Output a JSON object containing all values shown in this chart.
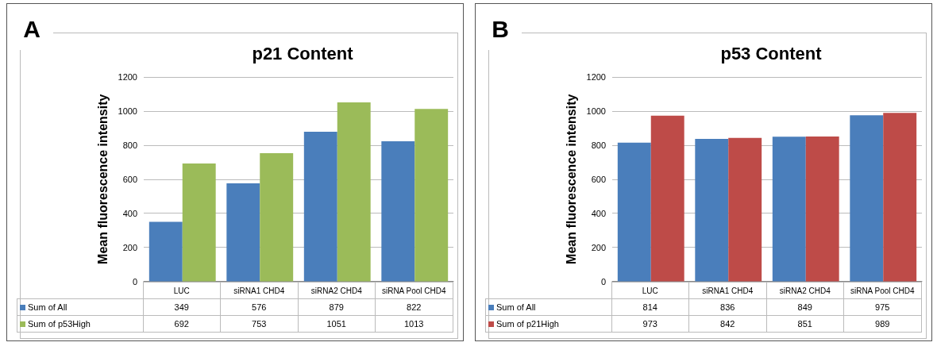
{
  "chart_data": [
    {
      "type": "bar",
      "title": "p21 Content",
      "ylabel": "Mean fluorescence intensity",
      "annotations": [
        "A"
      ],
      "categories": [
        "LUC",
        "siRNA1  CHD4",
        "siRNA2  CHD4",
        "siRNA  Pool  CHD4"
      ],
      "series": [
        {
          "name": "Sum of All",
          "color": "#4a7ebb",
          "values": [
            349,
            576,
            879,
            822
          ]
        },
        {
          "name": "Sum of p53High",
          "color": "#9bbb59",
          "values": [
            692,
            753,
            1051,
            1013
          ]
        }
      ],
      "ylim": [
        0,
        1200
      ],
      "yticks": [
        0,
        200,
        400,
        600,
        800,
        1000,
        1200
      ],
      "grid": "y",
      "legend": "bottom",
      "data_labels": true
    },
    {
      "type": "bar",
      "title": "p53 Content",
      "ylabel": "Mean fluorescence intensity",
      "annotations": [
        "B"
      ],
      "categories": [
        "LUC",
        "siRNA1  CHD4",
        "siRNA2  CHD4",
        "siRNA  Pool  CHD4"
      ],
      "series": [
        {
          "name": "Sum of All",
          "color": "#4a7ebb",
          "values": [
            814,
            836,
            849,
            975
          ]
        },
        {
          "name": "Sum of p21High",
          "color": "#be4b48",
          "values": [
            973,
            842,
            851,
            989
          ]
        }
      ],
      "ylim": [
        0,
        1200
      ],
      "yticks": [
        0,
        200,
        400,
        600,
        800,
        1000,
        1200
      ],
      "grid": "y",
      "legend": "bottom",
      "data_labels": true
    }
  ]
}
